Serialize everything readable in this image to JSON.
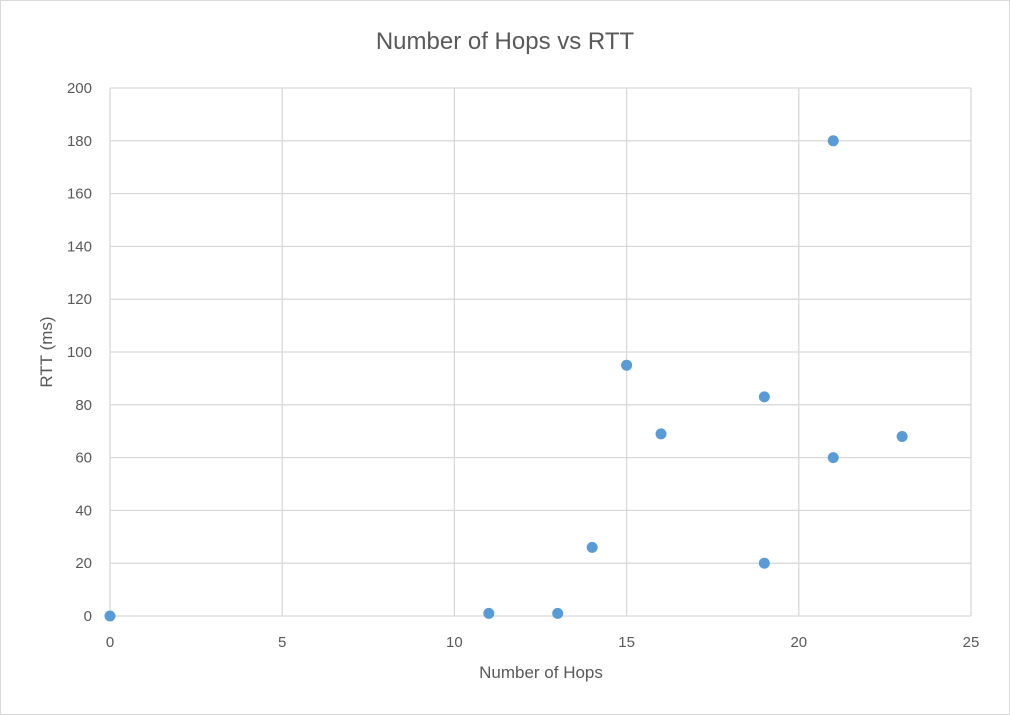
{
  "chart_data": {
    "type": "scatter",
    "title": "Number of Hops vs RTT",
    "xlabel": "Number of Hops",
    "ylabel": "RTT (ms)",
    "xlim": [
      0,
      25
    ],
    "ylim": [
      0,
      200
    ],
    "xticks": [
      0,
      5,
      10,
      15,
      20,
      25
    ],
    "yticks": [
      0,
      20,
      40,
      60,
      80,
      100,
      120,
      140,
      160,
      180,
      200
    ],
    "grid": true,
    "marker_color": "#5b9bd5",
    "points": [
      {
        "x": 0,
        "y": 0
      },
      {
        "x": 11,
        "y": 1
      },
      {
        "x": 13,
        "y": 1
      },
      {
        "x": 14,
        "y": 26
      },
      {
        "x": 15,
        "y": 95
      },
      {
        "x": 16,
        "y": 69
      },
      {
        "x": 19,
        "y": 83
      },
      {
        "x": 19,
        "y": 20
      },
      {
        "x": 21,
        "y": 180
      },
      {
        "x": 21,
        "y": 60
      },
      {
        "x": 23,
        "y": 68
      }
    ]
  }
}
